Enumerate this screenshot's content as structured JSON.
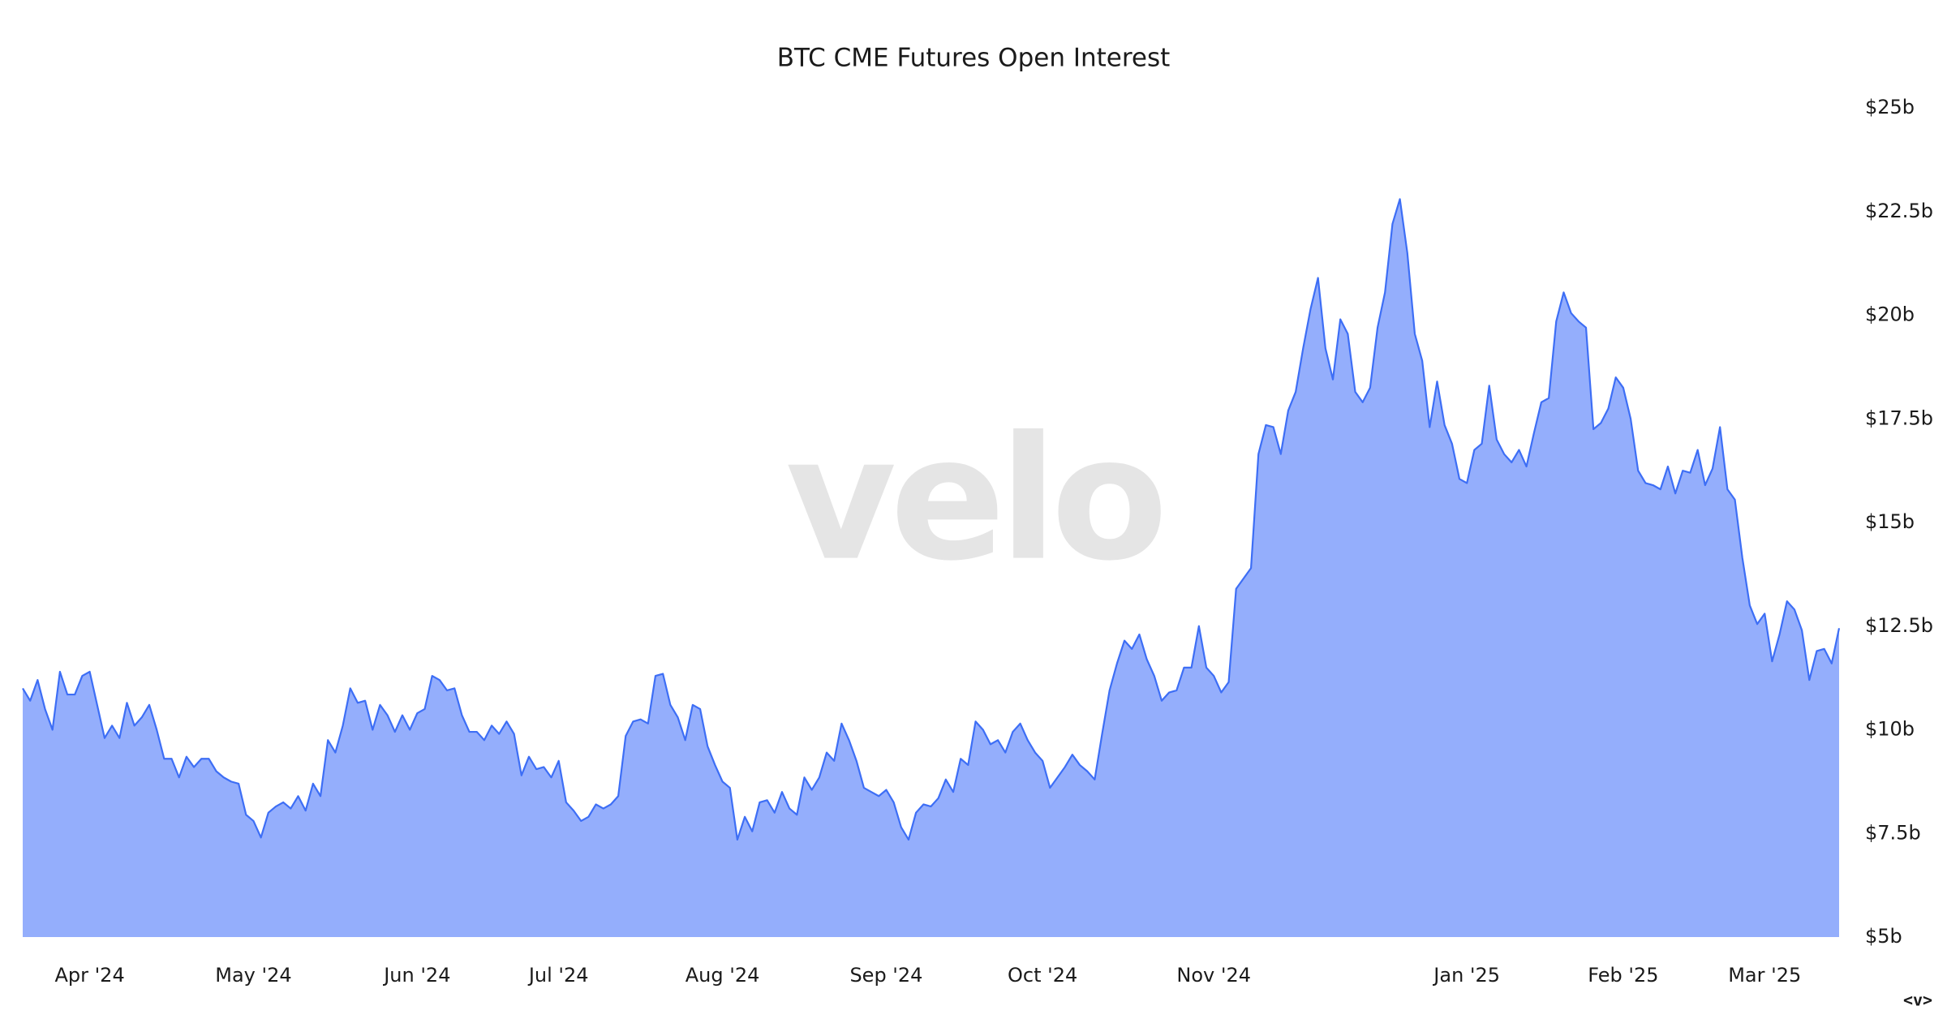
{
  "chart_data": {
    "type": "area",
    "title": "BTC CME Futures Open Interest",
    "watermark": "velo",
    "footer_mark": "<v>",
    "fill_color": "#94aefc",
    "line_color": "#3d6ef5",
    "grid": false,
    "ylim": [
      5,
      25
    ],
    "yticks": [
      {
        "value": 5,
        "label": "$5b"
      },
      {
        "value": 7.5,
        "label": "$7.5b"
      },
      {
        "value": 10,
        "label": "$10b"
      },
      {
        "value": 12.5,
        "label": "$12.5b"
      },
      {
        "value": 15,
        "label": "$15b"
      },
      {
        "value": 17.5,
        "label": "$17.5b"
      },
      {
        "value": 20,
        "label": "$20b"
      },
      {
        "value": 22.5,
        "label": "$22.5b"
      },
      {
        "value": 25,
        "label": "$25b"
      }
    ],
    "categories": [
      null,
      null,
      null,
      null,
      null,
      null,
      null,
      null,
      null,
      "Apr '24",
      null,
      null,
      null,
      null,
      null,
      null,
      null,
      null,
      null,
      null,
      null,
      null,
      null,
      null,
      null,
      null,
      null,
      null,
      null,
      null,
      null,
      "May '24",
      null,
      null,
      null,
      null,
      null,
      null,
      null,
      null,
      null,
      null,
      null,
      null,
      null,
      null,
      null,
      null,
      null,
      null,
      null,
      null,
      null,
      "Jun '24",
      null,
      null,
      null,
      null,
      null,
      null,
      null,
      null,
      null,
      null,
      null,
      null,
      null,
      null,
      null,
      null,
      null,
      null,
      "Jul '24",
      null,
      null,
      null,
      null,
      null,
      null,
      null,
      null,
      null,
      null,
      null,
      null,
      null,
      null,
      null,
      null,
      null,
      null,
      null,
      null,
      null,
      "Aug '24",
      null,
      null,
      null,
      null,
      null,
      null,
      null,
      null,
      null,
      null,
      null,
      null,
      null,
      null,
      null,
      null,
      null,
      null,
      null,
      null,
      null,
      "Sep '24",
      null,
      null,
      null,
      null,
      null,
      null,
      null,
      null,
      null,
      null,
      null,
      null,
      null,
      null,
      null,
      null,
      null,
      null,
      null,
      null,
      "Oct '24",
      null,
      null,
      null,
      null,
      null,
      null,
      null,
      null,
      null,
      null,
      null,
      null,
      null,
      null,
      null,
      null,
      null,
      null,
      null,
      null,
      null,
      null,
      "Nov '24",
      null,
      null,
      null,
      null,
      null,
      null,
      null,
      null,
      null,
      null,
      null,
      null,
      null,
      null,
      null,
      null,
      null,
      null,
      null,
      null,
      null,
      null,
      null,
      null,
      null,
      null,
      null,
      null,
      null,
      null,
      null,
      null,
      null,
      "Jan '25",
      null,
      null,
      null,
      null,
      null,
      null,
      null,
      null,
      null,
      null,
      null,
      null,
      null,
      null,
      null,
      null,
      null,
      null,
      null,
      null,
      "Feb '25",
      null,
      null,
      null,
      null,
      null,
      null,
      null,
      null,
      null,
      null,
      null,
      null,
      null,
      null,
      null,
      null,
      null,
      null,
      "Mar '25",
      null,
      null,
      null,
      null,
      null,
      null,
      null,
      null,
      null,
      null
    ],
    "values": [
      11.0,
      10.7,
      11.2,
      10.5,
      10.0,
      11.4,
      10.85,
      10.85,
      11.3,
      11.4,
      10.6,
      9.8,
      10.1,
      9.8,
      10.65,
      10.1,
      10.3,
      10.6,
      10.0,
      9.3,
      9.3,
      8.85,
      9.35,
      9.1,
      9.3,
      9.3,
      9.0,
      8.85,
      8.75,
      8.7,
      7.95,
      7.8,
      7.4,
      8.0,
      8.15,
      8.25,
      8.1,
      8.4,
      8.05,
      8.7,
      8.4,
      9.75,
      9.45,
      10.1,
      11.0,
      10.65,
      10.7,
      10.0,
      10.6,
      10.35,
      9.95,
      10.35,
      10.0,
      10.4,
      10.5,
      11.3,
      11.2,
      10.95,
      11.0,
      10.35,
      9.95,
      9.95,
      9.75,
      10.1,
      9.9,
      10.2,
      9.9,
      8.9,
      9.35,
      9.05,
      9.1,
      8.85,
      9.25,
      8.25,
      8.05,
      7.8,
      7.9,
      8.2,
      8.1,
      8.2,
      8.4,
      9.85,
      10.2,
      10.25,
      10.15,
      11.3,
      11.35,
      10.6,
      10.3,
      9.75,
      10.6,
      10.5,
      9.6,
      9.15,
      8.75,
      8.6,
      7.35,
      7.9,
      7.55,
      8.25,
      8.3,
      8.0,
      8.5,
      8.1,
      7.95,
      8.85,
      8.55,
      8.85,
      9.45,
      9.25,
      10.15,
      9.75,
      9.25,
      8.6,
      8.5,
      8.4,
      8.55,
      8.25,
      7.65,
      7.35,
      8.0,
      8.2,
      8.15,
      8.35,
      8.8,
      8.5,
      9.3,
      9.15,
      10.2,
      10.0,
      9.65,
      9.75,
      9.45,
      9.95,
      10.15,
      9.75,
      9.45,
      9.25,
      8.6,
      8.85,
      9.1,
      9.4,
      9.15,
      9.0,
      8.8,
      9.9,
      10.95,
      11.6,
      12.15,
      11.95,
      12.3,
      11.7,
      11.3,
      10.7,
      10.9,
      10.95,
      11.5,
      11.5,
      12.5,
      11.5,
      11.3,
      10.9,
      11.15,
      13.4,
      13.65,
      13.9,
      16.65,
      17.35,
      17.3,
      16.65,
      17.7,
      18.15,
      19.2,
      20.15,
      20.9,
      19.2,
      18.45,
      19.9,
      19.55,
      18.15,
      17.9,
      18.25,
      19.7,
      20.55,
      22.2,
      22.8,
      21.5,
      19.55,
      18.9,
      17.3,
      18.4,
      17.35,
      16.9,
      16.05,
      15.95,
      16.75,
      16.9,
      18.3,
      17.0,
      16.65,
      16.45,
      16.75,
      16.35,
      17.15,
      17.9,
      18.0,
      19.85,
      20.55,
      20.05,
      19.85,
      19.7,
      17.25,
      17.4,
      17.75,
      18.5,
      18.25,
      17.5,
      16.25,
      15.95,
      15.9,
      15.8,
      16.35,
      15.7,
      16.25,
      16.2,
      16.75,
      15.9,
      16.3,
      17.3,
      15.8,
      15.55,
      14.15,
      13.0,
      12.55,
      12.8,
      11.65,
      12.3,
      13.1,
      12.9,
      12.4,
      11.2,
      11.9,
      11.95,
      11.6,
      12.45
    ]
  }
}
